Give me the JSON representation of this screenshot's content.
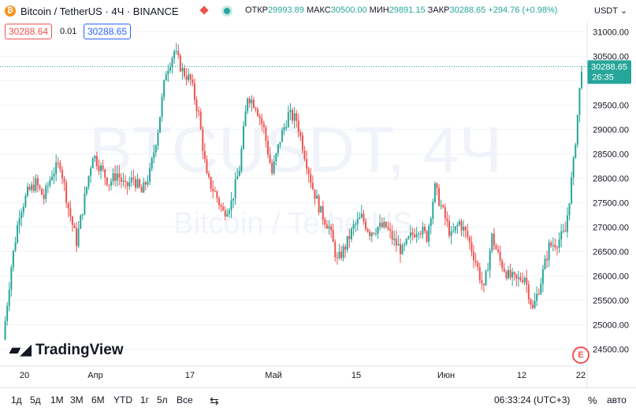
{
  "header": {
    "symbol_title": "Bitcoin / TetherUS · 4Ч · BINANCE",
    "open_label": "ОТКР",
    "open_value": "29993.89",
    "high_label": "МАКС",
    "high_value": "30500.00",
    "low_label": "МИН",
    "low_value": "29891.15",
    "close_label": "ЗАКР",
    "close_value": "30288.65",
    "change": "+294.76 (+0.98%)",
    "currency": "USDT",
    "bid": "30288.64",
    "spread": "0.01",
    "ask": "30288.65"
  },
  "watermark": {
    "ticker": "BTCUSDT, 4Ч",
    "name": "Bitcoin / TetherUS"
  },
  "logo": "TradingView",
  "last_price": {
    "price": "30288.65",
    "countdown": "26:35"
  },
  "bottom_bar": {
    "timeframes": [
      "1д",
      "5д",
      "1М",
      "3М",
      "6М",
      "YTD",
      "1г",
      "5л",
      "Все"
    ],
    "time": "06:33:24 (UTC+3)",
    "percent": "%",
    "auto": "авто"
  },
  "colors": {
    "up": "#26a69a",
    "down": "#ef5350",
    "accent": "#2962ff",
    "last_price_bg": "#26a69a"
  },
  "chart_data": {
    "type": "candlestick",
    "y_ticks": [
      31000,
      30500,
      30000,
      29500,
      29000,
      28500,
      28000,
      27500,
      27000,
      26500,
      26000,
      25500,
      25000,
      24500
    ],
    "x_ticks": [
      "20",
      "Апр",
      "17",
      "Май",
      "15",
      "Июн",
      "12",
      "22"
    ],
    "ylim": [
      24200,
      31200
    ],
    "close_path": [
      [
        0,
        24700
      ],
      [
        4,
        26200
      ],
      [
        8,
        27300
      ],
      [
        12,
        27700
      ],
      [
        16,
        27900
      ],
      [
        20,
        27600
      ],
      [
        24,
        28100
      ],
      [
        28,
        28300
      ],
      [
        32,
        27400
      ],
      [
        36,
        26700
      ],
      [
        40,
        27600
      ],
      [
        44,
        28500
      ],
      [
        48,
        28200
      ],
      [
        52,
        27900
      ],
      [
        56,
        28100
      ],
      [
        60,
        27800
      ],
      [
        64,
        28000
      ],
      [
        68,
        27700
      ],
      [
        72,
        28100
      ],
      [
        76,
        29000
      ],
      [
        80,
        30200
      ],
      [
        84,
        30600
      ],
      [
        88,
        30200
      ],
      [
        92,
        30000
      ],
      [
        96,
        29300
      ],
      [
        100,
        28000
      ],
      [
        104,
        27700
      ],
      [
        108,
        27300
      ],
      [
        112,
        27500
      ],
      [
        116,
        28200
      ],
      [
        120,
        29700
      ],
      [
        124,
        29500
      ],
      [
        128,
        29000
      ],
      [
        132,
        28100
      ],
      [
        136,
        28800
      ],
      [
        140,
        29300
      ],
      [
        144,
        29200
      ],
      [
        148,
        28500
      ],
      [
        152,
        27800
      ],
      [
        156,
        27300
      ],
      [
        160,
        27000
      ],
      [
        164,
        26300
      ],
      [
        168,
        26600
      ],
      [
        172,
        27000
      ],
      [
        176,
        27200
      ],
      [
        180,
        26900
      ],
      [
        184,
        27000
      ],
      [
        188,
        27000
      ],
      [
        192,
        26700
      ],
      [
        196,
        26500
      ],
      [
        200,
        26800
      ],
      [
        204,
        27000
      ],
      [
        208,
        26800
      ],
      [
        212,
        27800
      ],
      [
        216,
        27300
      ],
      [
        220,
        26800
      ],
      [
        224,
        27100
      ],
      [
        228,
        26800
      ],
      [
        232,
        26300
      ],
      [
        236,
        25700
      ],
      [
        240,
        26800
      ],
      [
        244,
        26300
      ],
      [
        248,
        26000
      ],
      [
        252,
        25900
      ],
      [
        256,
        26000
      ],
      [
        260,
        25300
      ],
      [
        264,
        25900
      ],
      [
        268,
        26600
      ],
      [
        272,
        26700
      ],
      [
        276,
        26900
      ],
      [
        280,
        28300
      ],
      [
        282,
        29300
      ],
      [
        284,
        30300
      ]
    ],
    "last_price": 30288.65
  }
}
